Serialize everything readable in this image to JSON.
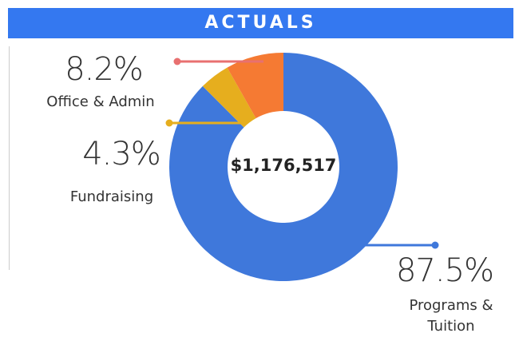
{
  "chart_data": {
    "type": "donut",
    "title": "ACTUALS",
    "center_label": "$1,176,517",
    "categories": [
      "Programs & Tuition",
      "Fundraising",
      "Office & Admin"
    ],
    "values": [
      87.5,
      4.3,
      8.2
    ],
    "value_labels": [
      "87.5%",
      "4.3%",
      "8.2%"
    ],
    "colors": [
      "#3f78db",
      "#e6ae1e",
      "#f57a33"
    ],
    "leader_colors": [
      "#3f78db",
      "#e6ae1e",
      "#e87070"
    ]
  }
}
